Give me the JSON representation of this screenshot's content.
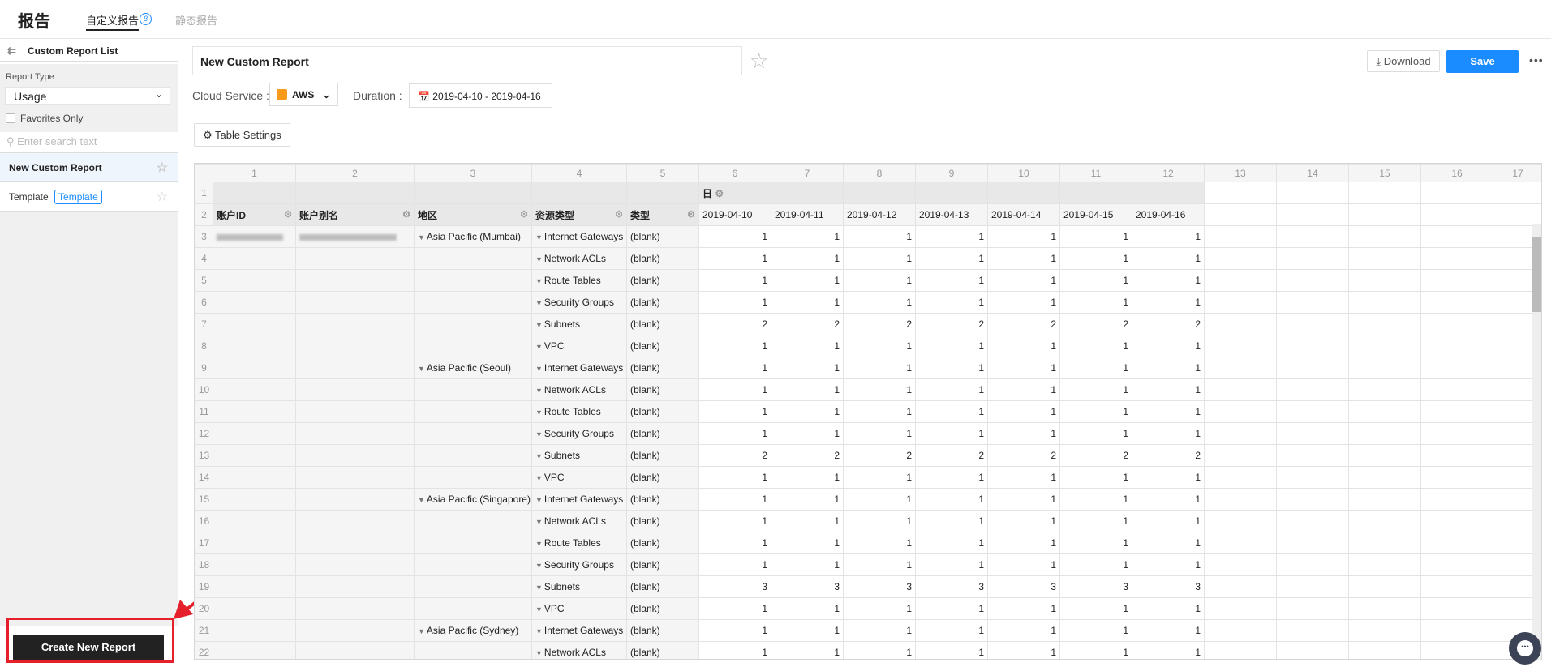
{
  "header": {
    "title": "报告",
    "tabs": [
      {
        "label": "自定义报告",
        "badge": "β",
        "active": true
      },
      {
        "label": "静态报告"
      }
    ]
  },
  "sidebar": {
    "title": "Custom Report List",
    "report_type_label": "Report Type",
    "report_type_value": "Usage",
    "favorites_label": "Favorites Only",
    "favorites_checked": false,
    "search_placeholder": "Enter search text",
    "items": [
      {
        "label": "New Custom Report",
        "selected": true
      },
      {
        "label": "Template",
        "badge": "Template"
      }
    ],
    "create_button": "Create New Report"
  },
  "toolbar": {
    "report_title": "New Custom Report",
    "download": "Download",
    "save": "Save",
    "more": "•••",
    "cloud_service_label": "Cloud Service :",
    "cloud_service_value": "AWS",
    "duration_label": "Duration :",
    "duration_value": "2019-04-10 - 2019-04-16",
    "table_settings": "Table Settings"
  },
  "colors": {
    "accent": "#1a8cff",
    "annotation": "#e5202a",
    "aws": "#f89b1c"
  },
  "grid": {
    "group_header": "日",
    "dim_headers": [
      "账户ID",
      "账户别名",
      "地区",
      "资源类型",
      "类型"
    ],
    "dates": [
      "2019-04-10",
      "2019-04-11",
      "2019-04-12",
      "2019-04-13",
      "2019-04-14",
      "2019-04-15",
      "2019-04-16"
    ],
    "column_count": 17,
    "rows": [
      {
        "region": "Asia Pacific (Mumbai)",
        "resource": "Internet Gateways",
        "type": "(blank)",
        "values": [
          1,
          1,
          1,
          1,
          1,
          1,
          1
        ]
      },
      {
        "region": "",
        "resource": "Network ACLs",
        "type": "(blank)",
        "values": [
          1,
          1,
          1,
          1,
          1,
          1,
          1
        ]
      },
      {
        "region": "",
        "resource": "Route Tables",
        "type": "(blank)",
        "values": [
          1,
          1,
          1,
          1,
          1,
          1,
          1
        ]
      },
      {
        "region": "",
        "resource": "Security Groups",
        "type": "(blank)",
        "values": [
          1,
          1,
          1,
          1,
          1,
          1,
          1
        ]
      },
      {
        "region": "",
        "resource": "Subnets",
        "type": "(blank)",
        "values": [
          2,
          2,
          2,
          2,
          2,
          2,
          2
        ]
      },
      {
        "region": "",
        "resource": "VPC",
        "type": "(blank)",
        "values": [
          1,
          1,
          1,
          1,
          1,
          1,
          1
        ]
      },
      {
        "region": "Asia Pacific (Seoul)",
        "resource": "Internet Gateways",
        "type": "(blank)",
        "values": [
          1,
          1,
          1,
          1,
          1,
          1,
          1
        ]
      },
      {
        "region": "",
        "resource": "Network ACLs",
        "type": "(blank)",
        "values": [
          1,
          1,
          1,
          1,
          1,
          1,
          1
        ]
      },
      {
        "region": "",
        "resource": "Route Tables",
        "type": "(blank)",
        "values": [
          1,
          1,
          1,
          1,
          1,
          1,
          1
        ]
      },
      {
        "region": "",
        "resource": "Security Groups",
        "type": "(blank)",
        "values": [
          1,
          1,
          1,
          1,
          1,
          1,
          1
        ]
      },
      {
        "region": "",
        "resource": "Subnets",
        "type": "(blank)",
        "values": [
          2,
          2,
          2,
          2,
          2,
          2,
          2
        ]
      },
      {
        "region": "",
        "resource": "VPC",
        "type": "(blank)",
        "values": [
          1,
          1,
          1,
          1,
          1,
          1,
          1
        ]
      },
      {
        "region": "Asia Pacific (Singapore)",
        "resource": "Internet Gateways",
        "type": "(blank)",
        "values": [
          1,
          1,
          1,
          1,
          1,
          1,
          1
        ]
      },
      {
        "region": "",
        "resource": "Network ACLs",
        "type": "(blank)",
        "values": [
          1,
          1,
          1,
          1,
          1,
          1,
          1
        ]
      },
      {
        "region": "",
        "resource": "Route Tables",
        "type": "(blank)",
        "values": [
          1,
          1,
          1,
          1,
          1,
          1,
          1
        ]
      },
      {
        "region": "",
        "resource": "Security Groups",
        "type": "(blank)",
        "values": [
          1,
          1,
          1,
          1,
          1,
          1,
          1
        ]
      },
      {
        "region": "",
        "resource": "Subnets",
        "type": "(blank)",
        "values": [
          3,
          3,
          3,
          3,
          3,
          3,
          3
        ]
      },
      {
        "region": "",
        "resource": "VPC",
        "type": "(blank)",
        "values": [
          1,
          1,
          1,
          1,
          1,
          1,
          1
        ]
      },
      {
        "region": "Asia Pacific (Sydney)",
        "resource": "Internet Gateways",
        "type": "(blank)",
        "values": [
          1,
          1,
          1,
          1,
          1,
          1,
          1
        ]
      },
      {
        "region": "",
        "resource": "Network ACLs",
        "type": "(blank)",
        "values": [
          1,
          1,
          1,
          1,
          1,
          1,
          1
        ]
      }
    ]
  }
}
